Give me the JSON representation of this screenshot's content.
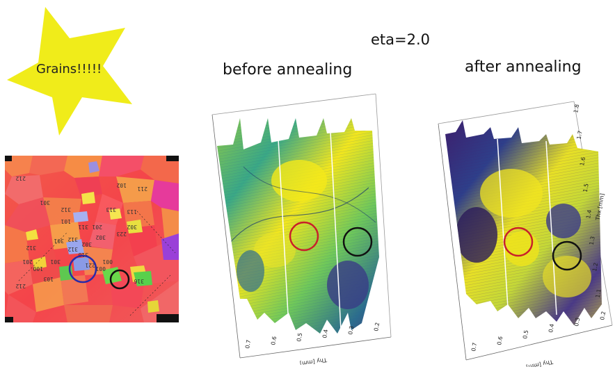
{
  "star": {
    "label": "Grains!!!!!",
    "color": "#f0ec1a"
  },
  "header": {
    "eta": "eta=2.0"
  },
  "panels": {
    "before": {
      "title": "before annealing",
      "x_axis_label": "Thy [mm]",
      "x_ticks": [
        "0.7",
        "0.6",
        "0.5",
        "0.4",
        "0.3",
        "0.2"
      ]
    },
    "after": {
      "title": "after annealing",
      "x_axis_label": "Thy [mm]",
      "x_ticks": [
        "0.7",
        "0.6",
        "0.5",
        "0.4",
        "0.3",
        "0.2"
      ],
      "y_axis_label": "Thx [mm]",
      "y_ticks": [
        "1.8",
        "1.7",
        "1.6",
        "1.5",
        "1.4",
        "1.3",
        "1.2",
        "1.1"
      ]
    }
  },
  "ebsd": {
    "grain_labels": [
      "212",
      "100",
      "211",
      "301",
      "102",
      "302",
      "312",
      "101",
      "313",
      "113",
      "311",
      "201",
      "302",
      "223",
      "302",
      "301",
      "312",
      "310",
      "001",
      "301",
      "201",
      "312",
      "103",
      "001",
      "316",
      "212",
      "221",
      "312"
    ]
  },
  "markers": {
    "ebsd_circles": [
      "#2a2aa8",
      "#111111"
    ],
    "before_circles": [
      "#c8202a",
      "#111111"
    ],
    "after_circles": [
      "#c8202a",
      "#111111"
    ]
  }
}
